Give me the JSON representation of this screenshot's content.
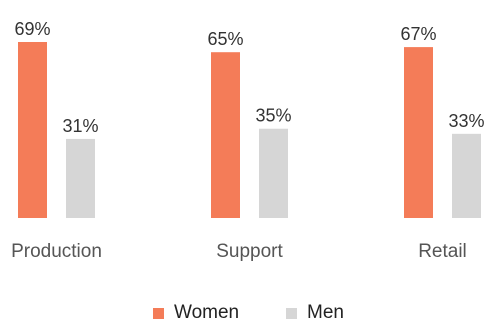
{
  "chart_data": {
    "type": "bar",
    "categories": [
      "Production",
      "Support",
      "Retail"
    ],
    "series": [
      {
        "name": "Women",
        "values": [
          69,
          65,
          67
        ],
        "labels": [
          "69%",
          "65%",
          "67%"
        ],
        "color": "#f47c58"
      },
      {
        "name": "Men",
        "values": [
          31,
          35,
          33
        ],
        "labels": [
          "31%",
          "35%",
          "33%"
        ],
        "color": "#d6d6d6"
      }
    ],
    "ylim": [
      0,
      69
    ],
    "grid": false,
    "legend_position": "bottom-center",
    "title": "",
    "xlabel": "",
    "ylabel": ""
  }
}
